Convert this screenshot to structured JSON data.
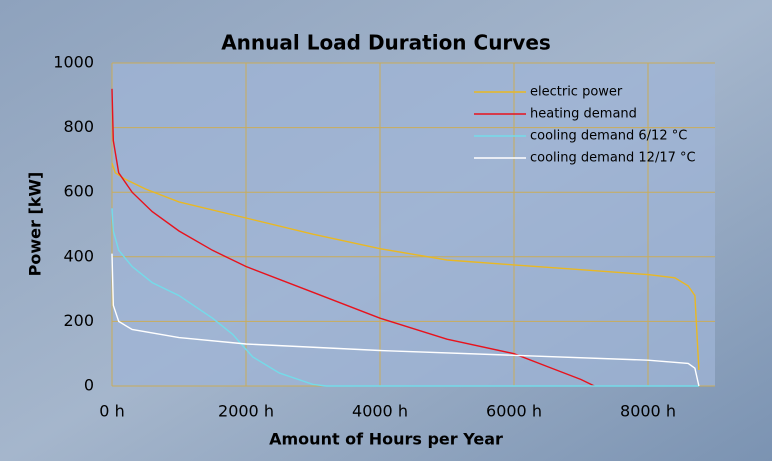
{
  "chart_data": {
    "type": "line",
    "title": "Annual Load Duration Curves",
    "x_label": "Amount of Hours per Year",
    "y_label": "Power [kW]",
    "xlim": [
      0,
      9000
    ],
    "ylim": [
      0,
      1000
    ],
    "xticks": [
      {
        "value": 0,
        "label": "0 h"
      },
      {
        "value": 2000,
        "label": "2000 h"
      },
      {
        "value": 4000,
        "label": "4000 h"
      },
      {
        "value": 6000,
        "label": "6000 h"
      },
      {
        "value": 8000,
        "label": "8000 h"
      }
    ],
    "yticks": [
      0,
      200,
      400,
      600,
      800,
      1000
    ],
    "grid": true,
    "legend": "upper right",
    "series": [
      {
        "name": "electric power",
        "color": "#e9b823",
        "x": [
          0,
          50,
          200,
          500,
          1000,
          2000,
          3000,
          4000,
          5000,
          6000,
          7000,
          8000,
          8400,
          8600,
          8700,
          8760
        ],
        "values": [
          690,
          660,
          640,
          610,
          570,
          520,
          470,
          425,
          390,
          375,
          360,
          345,
          335,
          310,
          280,
          50
        ]
      },
      {
        "name": "heating demand",
        "color": "#e8121c",
        "x": [
          0,
          20,
          100,
          300,
          600,
          1000,
          1500,
          2000,
          3000,
          4000,
          5000,
          6000,
          6500,
          7000,
          7200
        ],
        "values": [
          920,
          760,
          660,
          600,
          540,
          480,
          420,
          370,
          290,
          210,
          145,
          100,
          60,
          20,
          0
        ]
      },
      {
        "name": "cooling demand 6/12 °C",
        "color": "#74dbe9",
        "x": [
          0,
          20,
          100,
          300,
          600,
          1000,
          1500,
          1800,
          2100,
          2500,
          3000,
          3200,
          8760
        ],
        "values": [
          550,
          480,
          420,
          370,
          320,
          280,
          210,
          160,
          90,
          40,
          5,
          0,
          0
        ]
      },
      {
        "name": "cooling demand 12/17 °C",
        "color": "#ffffff",
        "x": [
          0,
          20,
          100,
          300,
          1000,
          2000,
          4000,
          6000,
          8000,
          8600,
          8700,
          8760
        ],
        "values": [
          410,
          250,
          200,
          175,
          150,
          130,
          110,
          95,
          80,
          70,
          55,
          0
        ]
      }
    ]
  }
}
